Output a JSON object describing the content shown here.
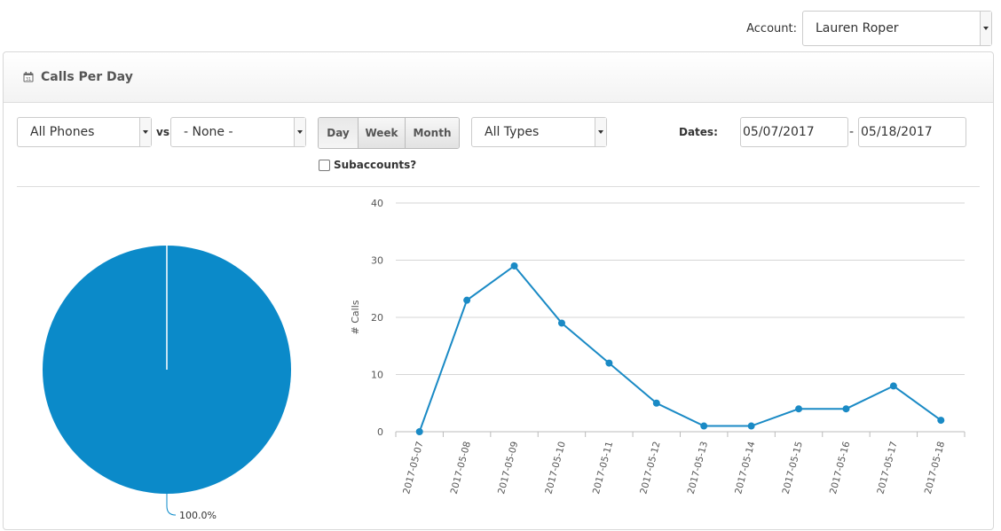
{
  "account": {
    "label": "Account:",
    "selected": "Lauren Roper"
  },
  "panel": {
    "title": "Calls Per Day"
  },
  "filters": {
    "phones": "All Phones",
    "vs_label": "vs",
    "compare": "- None -",
    "period_buttons": [
      "Day",
      "Week",
      "Month"
    ],
    "active_period": "Day",
    "types": "All Types",
    "dates_label": "Dates:",
    "date_from": "05/07/2017",
    "date_sep": "-",
    "date_to": "05/18/2017",
    "subaccounts_label": "Subaccounts?"
  },
  "pie_chart": {
    "label": "100.0%",
    "color": "#0b8ac9"
  },
  "chart_data": {
    "type": "line",
    "x": [
      "2017-05-07",
      "2017-05-08",
      "2017-05-09",
      "2017-05-10",
      "2017-05-11",
      "2017-05-12",
      "2017-05-13",
      "2017-05-14",
      "2017-05-15",
      "2017-05-16",
      "2017-05-17",
      "2017-05-18"
    ],
    "series": [
      {
        "values": [
          0,
          23,
          29,
          19,
          12,
          5,
          1,
          1,
          4,
          4,
          8,
          2
        ]
      }
    ],
    "ylabel": "# Calls",
    "ylim": [
      0,
      40
    ],
    "yticks": [
      0,
      10,
      20,
      30,
      40
    ],
    "grid": true,
    "color": "#1a8ac5"
  }
}
